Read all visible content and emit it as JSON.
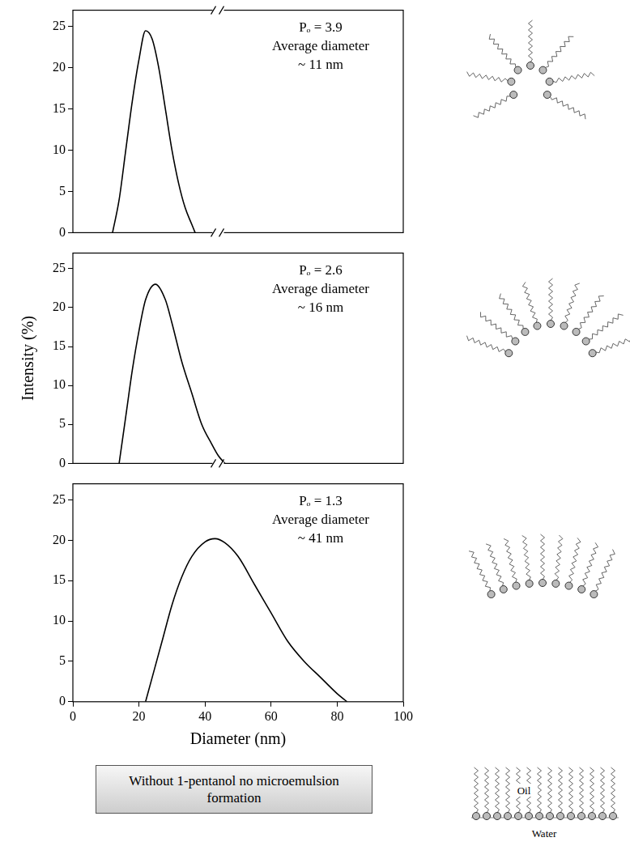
{
  "chart_data": [
    {
      "type": "line",
      "annotations": [
        "Pₒ = 3.9",
        "Average diameter",
        "~ 11 nm"
      ],
      "x": [
        12,
        14,
        16,
        18,
        20,
        22,
        24,
        26,
        28,
        30,
        32,
        34,
        36,
        37
      ],
      "values": [
        0,
        4,
        10,
        16,
        21,
        24.5,
        23.5,
        20,
        15,
        10,
        6,
        3,
        1,
        0
      ],
      "color": "#000000",
      "xlim": [
        0,
        100
      ],
      "ylim": [
        0,
        27
      ],
      "yticks": [
        0,
        5,
        10,
        15,
        20,
        25
      ],
      "tick_labels": "y"
    },
    {
      "type": "line",
      "annotations": [
        "Pₒ = 2.6",
        "Average diameter",
        "~ 16 nm"
      ],
      "y_label": "Intensity (%)",
      "x": [
        14,
        16,
        18,
        20,
        22,
        25,
        28,
        30,
        33,
        36,
        39,
        42,
        44,
        46
      ],
      "values": [
        0,
        6,
        12,
        17,
        21,
        23,
        21,
        18,
        13,
        9,
        5,
        2.5,
        1,
        0
      ],
      "color": "#000000",
      "xlim": [
        0,
        100
      ],
      "ylim": [
        0,
        27
      ],
      "yticks": [
        0,
        5,
        10,
        15,
        20,
        25
      ],
      "tick_labels": "y"
    },
    {
      "type": "line",
      "annotations": [
        "Pₒ = 1.3",
        "Average diameter",
        "~ 41 nm"
      ],
      "x_label": "Diameter (nm)",
      "x": [
        22,
        24,
        27,
        30,
        33,
        36,
        40,
        43,
        46,
        50,
        55,
        60,
        65,
        70,
        75,
        80,
        83
      ],
      "values": [
        0,
        3,
        7.5,
        12,
        15.5,
        18,
        19.8,
        20.2,
        19.7,
        18,
        14.5,
        11,
        7.5,
        5,
        3,
        1,
        0
      ],
      "color": "#000000",
      "xlim": [
        0,
        100
      ],
      "xticks": [
        0,
        20,
        40,
        60,
        80,
        100
      ],
      "ylim": [
        0,
        27
      ],
      "yticks": [
        0,
        5,
        10,
        15,
        20,
        25
      ]
    }
  ],
  "footer_box": {
    "text": "Without 1-pentanol no microemulsion formation"
  },
  "interface_diagram": {
    "upper_label": "Oil",
    "lower_label": "Water"
  }
}
